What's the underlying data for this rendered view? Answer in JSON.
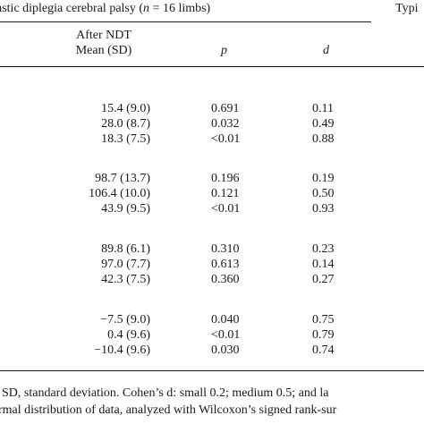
{
  "header": {
    "group_prefix": "astic diplegia cerebral palsy (",
    "group_n": "n",
    "group_suffix": " = 16 limbs)",
    "group_right_fragment": "Typi",
    "col_after_line1": "After NDT",
    "col_after_line2": "Mean (SD)",
    "col_p": "p",
    "col_d": "d"
  },
  "groups": [
    {
      "rows": [
        {
          "mean": "15.4 (9.0)",
          "p": "0.691",
          "d": "0.11"
        },
        {
          "mean": "28.0 (8.7)",
          "p": "0.032",
          "d": "0.49"
        },
        {
          "mean": "18.3 (7.5)",
          "p": "<0.01",
          "d": "0.88"
        }
      ]
    },
    {
      "rows": [
        {
          "mean": "98.7 (13.7)",
          "p": "0.196",
          "d": "0.19"
        },
        {
          "mean": "106.4 (10.0)",
          "p": "0.121",
          "d": "0.50"
        },
        {
          "mean": "43.9 (9.5)",
          "p": "<0.01",
          "d": "0.93"
        }
      ]
    },
    {
      "rows": [
        {
          "mean": "89.8 (6.1)",
          "p": "0.310",
          "d": "0.23"
        },
        {
          "mean": "97.0 (7.7)",
          "p": "0.613",
          "d": "0.14"
        },
        {
          "mean": "42.3 (7.5)",
          "p": "0.360",
          "d": "0.27"
        }
      ]
    },
    {
      "rows": [
        {
          "mean": "−7.5 (9.0)",
          "p": "0.040",
          "d": "0.75"
        },
        {
          "mean": "0.4 (9.6)",
          "p": "<0.01",
          "d": "0.79"
        },
        {
          "mean": "−10.4 (9.6)",
          "p": "0.030",
          "d": "0.74"
        }
      ]
    }
  ],
  "footnote": {
    "line1": "SD, standard deviation. Cohen’s d: small 0.2; medium 0.5; and la",
    "line2": "rmal distribution of data, analyzed with Wilcoxon’s signed rank-sur"
  }
}
